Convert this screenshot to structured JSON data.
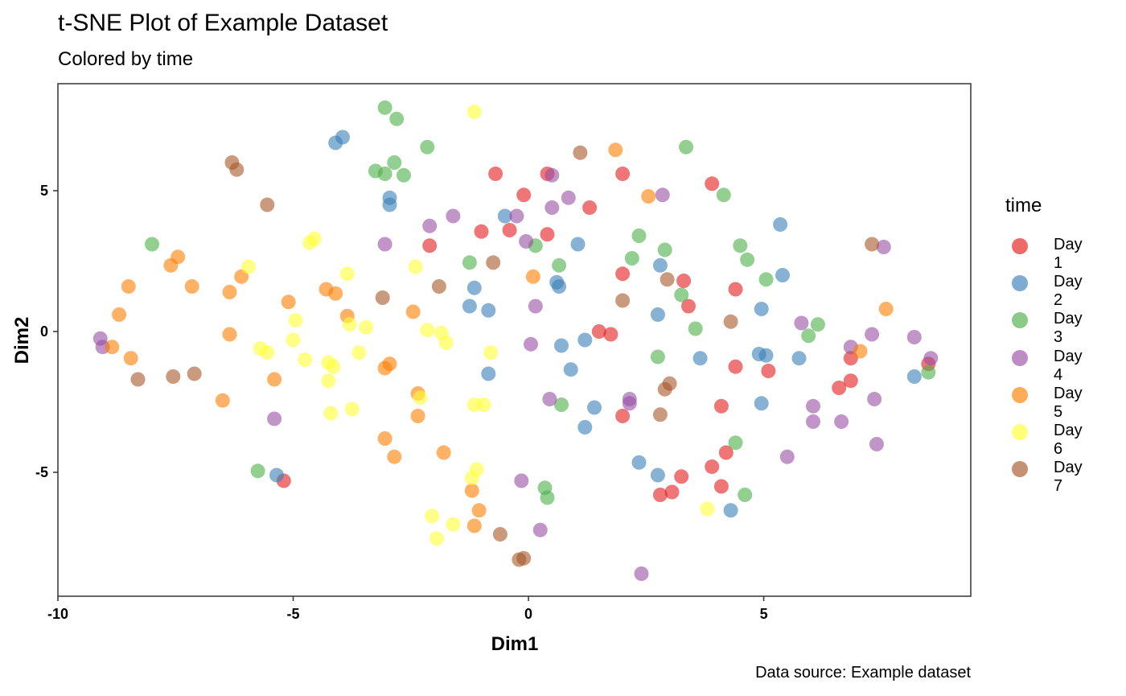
{
  "chart_data": {
    "type": "scatter",
    "title": "t-SNE Plot of Example Dataset",
    "subtitle": "Colored by time",
    "xlabel": "Dim1",
    "ylabel": "Dim2",
    "caption": "Data source: Example dataset",
    "xlim": [
      -10,
      9.4
    ],
    "ylim": [
      -9.4,
      8.8
    ],
    "xticks": [
      -10,
      -5,
      0,
      5
    ],
    "yticks": [
      5,
      0,
      -5
    ],
    "xtick_labels": [
      "-10",
      "-5",
      "0",
      "5"
    ],
    "ytick_labels": [
      "5",
      "0",
      "-5"
    ],
    "grid": false,
    "legend_title": "time",
    "legend_position": "right",
    "series": [
      {
        "name": "Day 1",
        "color": "#e41a1c",
        "points": [
          [
            -0.7,
            5.6
          ],
          [
            0.4,
            5.6
          ],
          [
            -0.1,
            4.85
          ],
          [
            1.3,
            4.4
          ],
          [
            2.0,
            5.6
          ],
          [
            3.9,
            5.25
          ],
          [
            -1.0,
            3.55
          ],
          [
            -0.4,
            3.6
          ],
          [
            0.4,
            3.45
          ],
          [
            -2.1,
            3.05
          ],
          [
            2.0,
            2.05
          ],
          [
            3.3,
            1.8
          ],
          [
            3.4,
            0.9
          ],
          [
            4.4,
            1.5
          ],
          [
            1.5,
            0.0
          ],
          [
            1.75,
            -0.1
          ],
          [
            4.4,
            -1.25
          ],
          [
            5.1,
            -1.4
          ],
          [
            6.85,
            -0.95
          ],
          [
            6.85,
            -1.75
          ],
          [
            6.6,
            -2.0
          ],
          [
            8.5,
            -1.15
          ],
          [
            4.1,
            -2.65
          ],
          [
            2.0,
            -3.0
          ],
          [
            4.2,
            -4.3
          ],
          [
            3.9,
            -4.8
          ],
          [
            3.25,
            -5.15
          ],
          [
            4.1,
            -5.5
          ],
          [
            3.05,
            -5.7
          ],
          [
            2.8,
            -5.8
          ],
          [
            -5.2,
            -5.3
          ]
        ]
      },
      {
        "name": "Day 2",
        "color": "#377eb8",
        "points": [
          [
            -4.1,
            6.7
          ],
          [
            -3.95,
            6.9
          ],
          [
            -2.95,
            4.75
          ],
          [
            -2.95,
            4.5
          ],
          [
            -0.5,
            4.1
          ],
          [
            1.05,
            3.1
          ],
          [
            0.6,
            1.75
          ],
          [
            0.65,
            1.6
          ],
          [
            -1.15,
            1.55
          ],
          [
            -0.85,
            0.75
          ],
          [
            -1.25,
            0.9
          ],
          [
            0.7,
            -0.5
          ],
          [
            1.2,
            -0.3
          ],
          [
            0.9,
            -1.35
          ],
          [
            -0.85,
            -1.5
          ],
          [
            1.4,
            -2.7
          ],
          [
            1.2,
            -3.4
          ],
          [
            2.8,
            2.35
          ],
          [
            2.75,
            0.6
          ],
          [
            3.65,
            -0.95
          ],
          [
            4.95,
            0.8
          ],
          [
            4.9,
            -0.8
          ],
          [
            5.05,
            -0.85
          ],
          [
            5.75,
            -0.95
          ],
          [
            5.35,
            3.8
          ],
          [
            5.4,
            2.0
          ],
          [
            4.95,
            -2.55
          ],
          [
            8.2,
            -1.6
          ],
          [
            2.35,
            -4.65
          ],
          [
            2.75,
            -5.1
          ],
          [
            4.3,
            -6.35
          ],
          [
            -5.35,
            -5.1
          ]
        ]
      },
      {
        "name": "Day 3",
        "color": "#4daf4a",
        "points": [
          [
            -3.05,
            7.95
          ],
          [
            -2.8,
            7.55
          ],
          [
            -2.15,
            6.55
          ],
          [
            -3.25,
            5.7
          ],
          [
            -3.05,
            5.6
          ],
          [
            -2.85,
            6.0
          ],
          [
            -2.65,
            5.55
          ],
          [
            3.35,
            6.55
          ],
          [
            4.15,
            4.85
          ],
          [
            2.35,
            3.4
          ],
          [
            2.9,
            2.9
          ],
          [
            2.2,
            2.6
          ],
          [
            -1.25,
            2.45
          ],
          [
            0.15,
            3.05
          ],
          [
            0.65,
            2.35
          ],
          [
            4.5,
            3.05
          ],
          [
            4.65,
            2.55
          ],
          [
            5.05,
            1.85
          ],
          [
            3.25,
            1.3
          ],
          [
            3.55,
            0.1
          ],
          [
            6.15,
            0.25
          ],
          [
            5.95,
            -0.15
          ],
          [
            2.75,
            -0.9
          ],
          [
            0.7,
            -2.6
          ],
          [
            4.4,
            -3.95
          ],
          [
            4.6,
            -5.8
          ],
          [
            0.35,
            -5.55
          ],
          [
            0.4,
            -5.9
          ],
          [
            8.5,
            -1.45
          ],
          [
            -8.0,
            3.1
          ],
          [
            -5.75,
            -4.95
          ]
        ]
      },
      {
        "name": "Day 4",
        "color": "#984ea3",
        "points": [
          [
            0.5,
            5.55
          ],
          [
            0.85,
            4.75
          ],
          [
            2.85,
            4.85
          ],
          [
            0.5,
            4.4
          ],
          [
            -0.25,
            4.1
          ],
          [
            -1.6,
            4.1
          ],
          [
            -2.1,
            3.75
          ],
          [
            -3.05,
            3.1
          ],
          [
            -0.05,
            3.2
          ],
          [
            0.15,
            0.9
          ],
          [
            5.8,
            0.3
          ],
          [
            6.85,
            -0.55
          ],
          [
            7.3,
            -0.1
          ],
          [
            8.2,
            -0.2
          ],
          [
            8.55,
            -0.95
          ],
          [
            0.05,
            -0.45
          ],
          [
            7.35,
            -2.4
          ],
          [
            6.05,
            -2.65
          ],
          [
            6.05,
            -3.2
          ],
          [
            6.65,
            -3.2
          ],
          [
            2.15,
            -2.4
          ],
          [
            2.15,
            -2.55
          ],
          [
            0.45,
            -2.4
          ],
          [
            5.5,
            -4.45
          ],
          [
            7.4,
            -4.0
          ],
          [
            7.55,
            3.0
          ],
          [
            -0.15,
            -5.3
          ],
          [
            0.25,
            -7.05
          ],
          [
            2.4,
            -8.6
          ],
          [
            -9.1,
            -0.25
          ],
          [
            -9.05,
            -0.55
          ],
          [
            -5.4,
            -3.1
          ]
        ]
      },
      {
        "name": "Day 5",
        "color": "#ff7f00",
        "points": [
          [
            1.85,
            6.45
          ],
          [
            2.55,
            4.8
          ],
          [
            0.1,
            1.95
          ],
          [
            -2.45,
            0.7
          ],
          [
            -5.1,
            1.05
          ],
          [
            -4.3,
            1.5
          ],
          [
            -4.1,
            1.35
          ],
          [
            -3.85,
            0.55
          ],
          [
            -6.1,
            1.95
          ],
          [
            -6.35,
            1.4
          ],
          [
            -7.15,
            1.6
          ],
          [
            -7.6,
            2.35
          ],
          [
            -7.45,
            2.65
          ],
          [
            -8.5,
            1.6
          ],
          [
            -8.7,
            0.6
          ],
          [
            -8.85,
            -0.55
          ],
          [
            -8.45,
            -0.95
          ],
          [
            -6.35,
            -0.1
          ],
          [
            -5.4,
            -1.7
          ],
          [
            -6.5,
            -2.45
          ],
          [
            -3.05,
            -1.3
          ],
          [
            -2.95,
            -1.15
          ],
          [
            -2.35,
            -2.2
          ],
          [
            -2.35,
            -3.0
          ],
          [
            -3.05,
            -3.8
          ],
          [
            -2.85,
            -4.45
          ],
          [
            -1.8,
            -4.3
          ],
          [
            -1.2,
            -5.65
          ],
          [
            -1.05,
            -6.35
          ],
          [
            -1.15,
            -6.9
          ],
          [
            7.05,
            -0.7
          ],
          [
            7.6,
            0.8
          ]
        ]
      },
      {
        "name": "Day 6",
        "color": "#ffff33",
        "points": [
          [
            -1.15,
            7.8
          ],
          [
            -4.65,
            3.15
          ],
          [
            -4.55,
            3.3
          ],
          [
            -5.95,
            2.3
          ],
          [
            -3.85,
            2.05
          ],
          [
            -2.4,
            2.3
          ],
          [
            -4.95,
            0.4
          ],
          [
            -3.8,
            0.25
          ],
          [
            -3.45,
            0.15
          ],
          [
            -2.15,
            0.05
          ],
          [
            -1.85,
            -0.05
          ],
          [
            -1.75,
            -0.4
          ],
          [
            -5.0,
            -0.3
          ],
          [
            -5.7,
            -0.6
          ],
          [
            -5.55,
            -0.75
          ],
          [
            -4.75,
            -1.0
          ],
          [
            -4.25,
            -1.1
          ],
          [
            -4.15,
            -1.25
          ],
          [
            -3.6,
            -0.75
          ],
          [
            -4.25,
            -1.75
          ],
          [
            -0.8,
            -0.75
          ],
          [
            -4.2,
            -2.9
          ],
          [
            -3.75,
            -2.75
          ],
          [
            -2.3,
            -2.35
          ],
          [
            -1.15,
            -2.6
          ],
          [
            -0.95,
            -2.6
          ],
          [
            -1.1,
            -4.9
          ],
          [
            -1.2,
            -5.2
          ],
          [
            -2.05,
            -6.55
          ],
          [
            -1.95,
            -7.35
          ],
          [
            -1.6,
            -6.85
          ],
          [
            3.8,
            -6.3
          ]
        ]
      },
      {
        "name": "Day 7",
        "color": "#a65628",
        "points": [
          [
            1.1,
            6.35
          ],
          [
            -6.3,
            6.0
          ],
          [
            -6.2,
            5.75
          ],
          [
            -5.55,
            4.5
          ],
          [
            -0.75,
            2.45
          ],
          [
            -1.9,
            1.6
          ],
          [
            -3.1,
            1.2
          ],
          [
            2.95,
            1.85
          ],
          [
            2.0,
            1.1
          ],
          [
            4.3,
            0.35
          ],
          [
            3.0,
            -1.85
          ],
          [
            2.9,
            -2.05
          ],
          [
            2.8,
            -2.95
          ],
          [
            7.3,
            3.1
          ],
          [
            -8.3,
            -1.7
          ],
          [
            -7.55,
            -1.6
          ],
          [
            -7.1,
            -1.5
          ],
          [
            -0.6,
            -7.2
          ],
          [
            -0.1,
            -8.05
          ],
          [
            -0.2,
            -8.1
          ]
        ]
      }
    ]
  }
}
